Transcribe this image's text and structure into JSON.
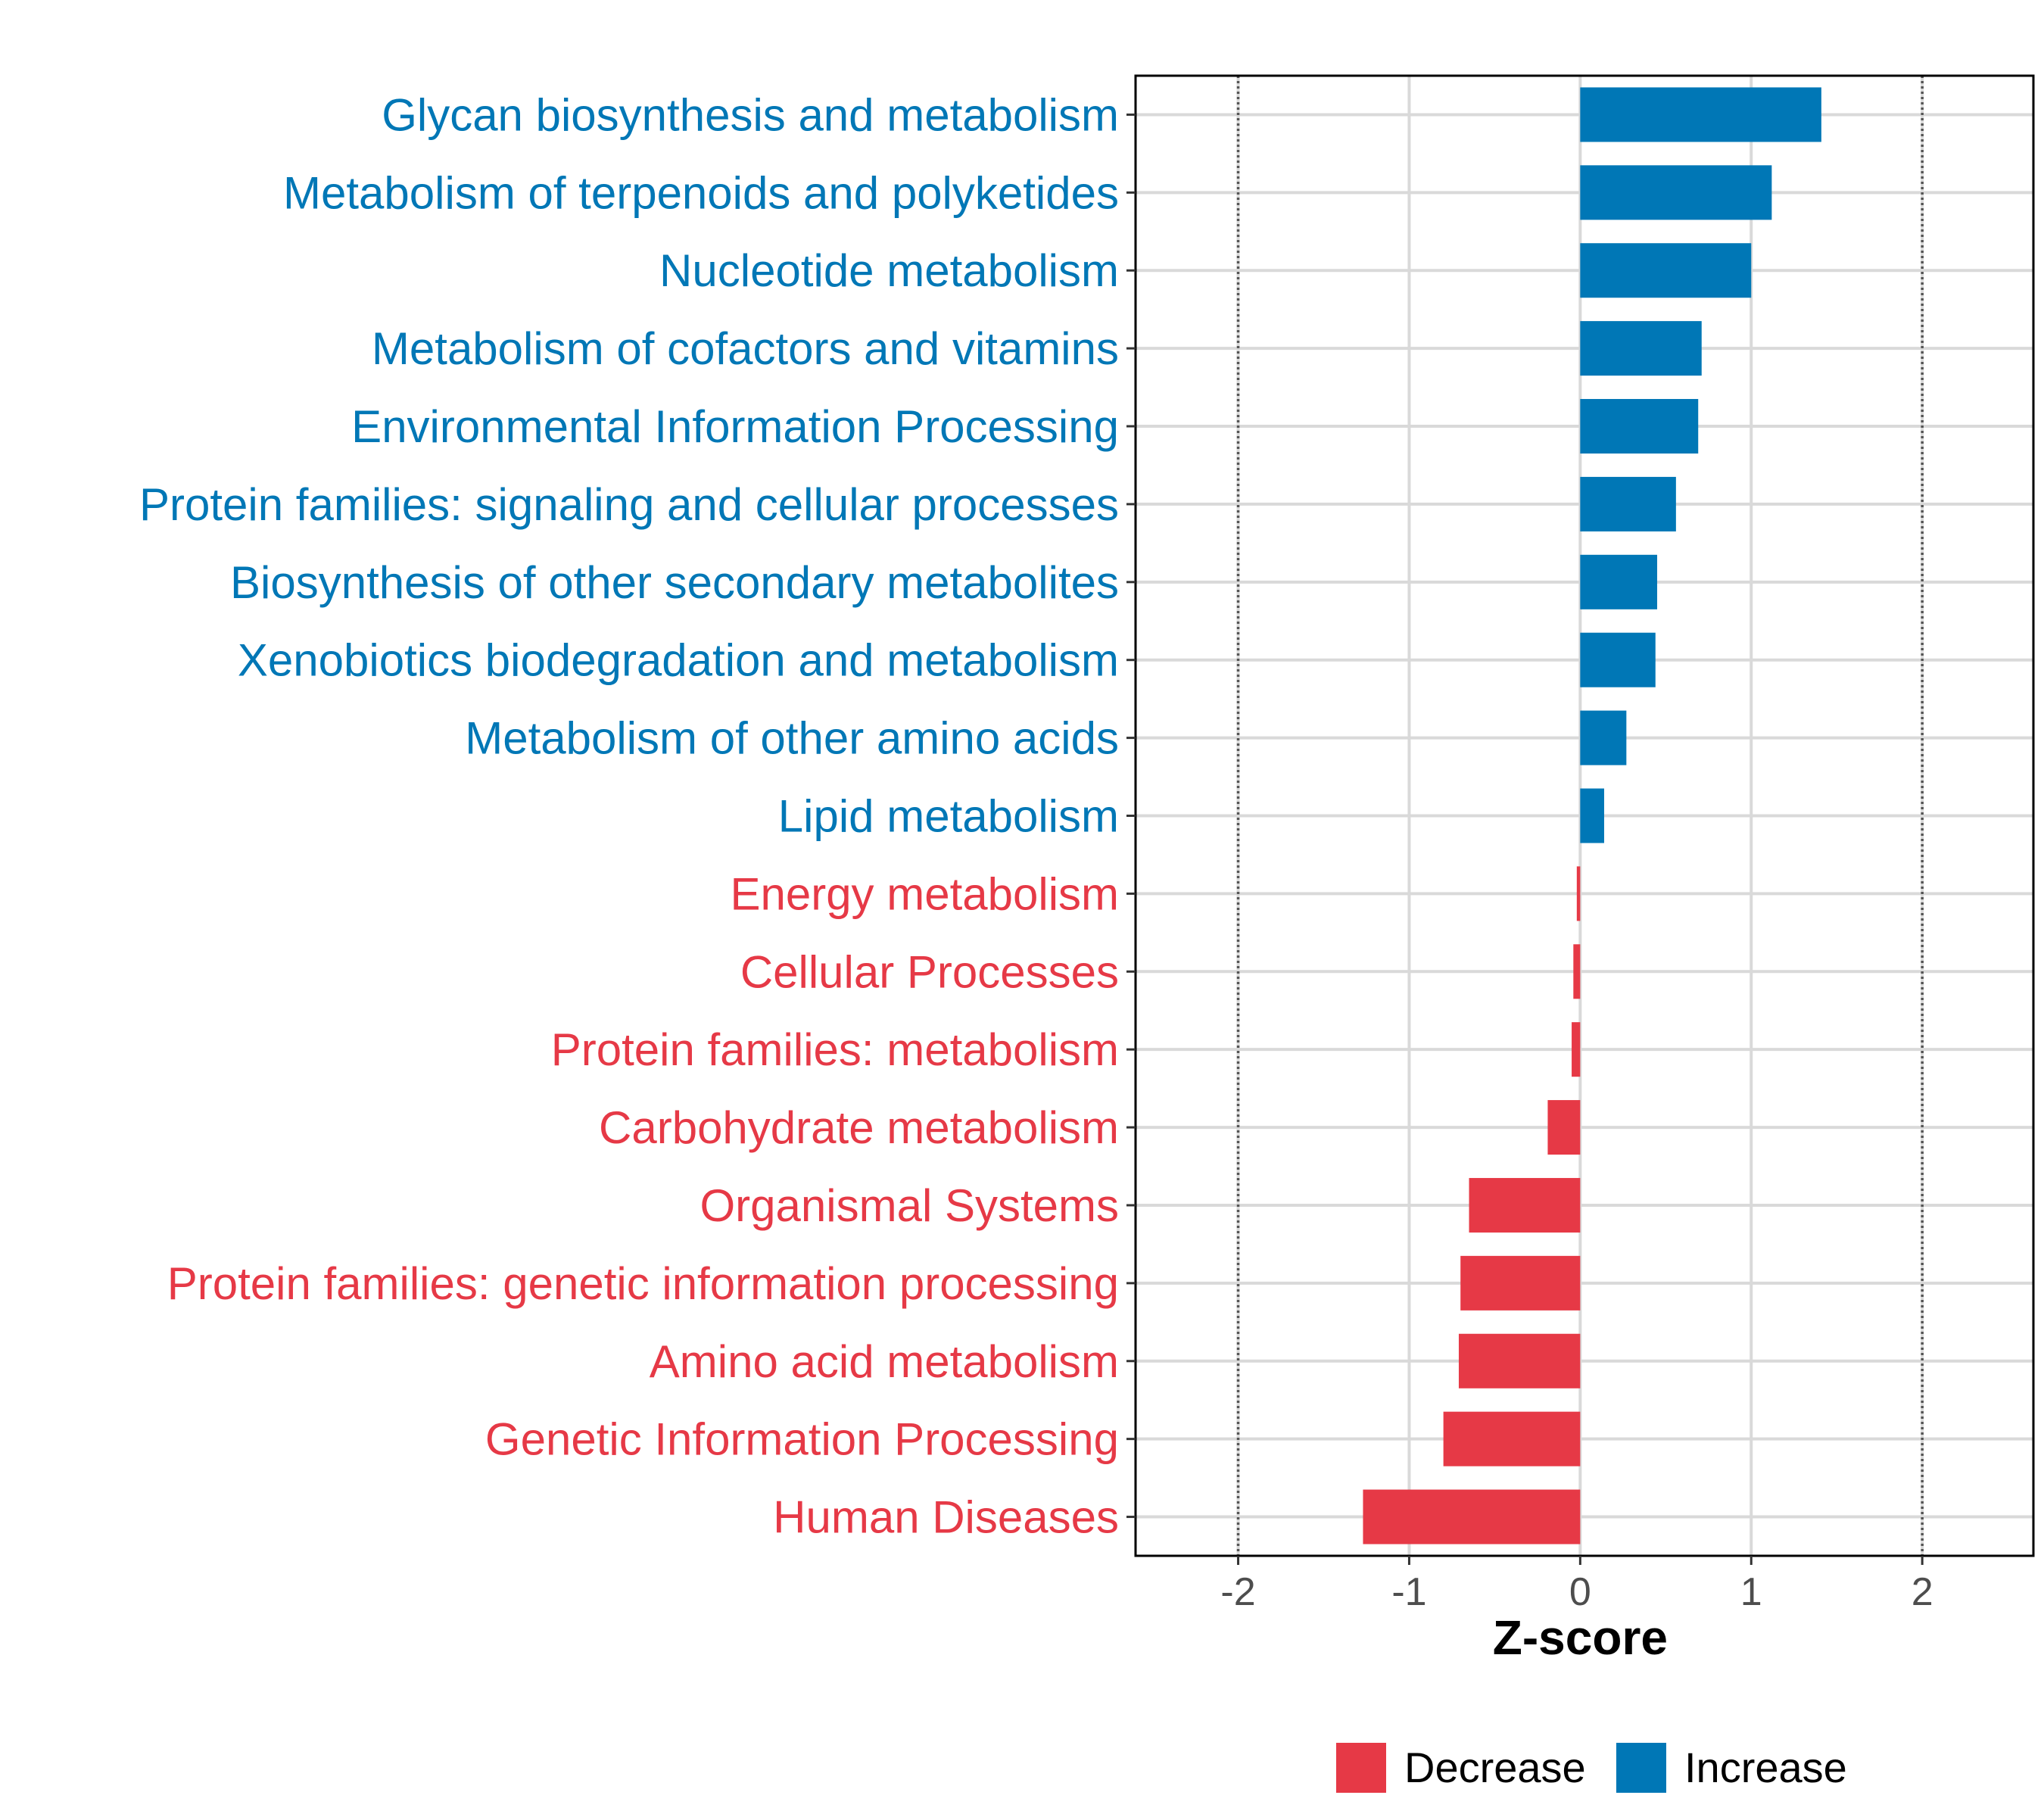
{
  "chart_data": {
    "type": "bar",
    "orientation": "horizontal",
    "xlabel": "Z-score",
    "ylabel": "",
    "xlim": [
      -2.6,
      2.65
    ],
    "xticks": [
      -2,
      -1,
      0,
      1,
      2
    ],
    "xtick_labels": [
      "-2",
      "-1",
      "0",
      "1",
      "2"
    ],
    "reference_lines": [
      -2,
      2
    ],
    "grid": true,
    "categories": [
      "Glycan biosynthesis and metabolism",
      "Metabolism of terpenoids and polyketides",
      "Nucleotide metabolism",
      "Metabolism of cofactors and vitamins",
      "Environmental Information Processing",
      "Protein families: signaling and cellular processes",
      "Biosynthesis of other secondary metabolites",
      "Xenobiotics biodegradation and metabolism",
      "Metabolism of other amino acids",
      "Lipid metabolism",
      "Energy metabolism",
      "Cellular Processes",
      "Protein families: metabolism",
      "Carbohydrate metabolism",
      "Organismal Systems",
      "Protein families: genetic information processing",
      "Amino acid metabolism",
      "Genetic Information Processing",
      "Human Diseases"
    ],
    "values": [
      1.41,
      1.12,
      1.0,
      0.71,
      0.69,
      0.56,
      0.45,
      0.44,
      0.27,
      0.14,
      -0.02,
      -0.04,
      -0.05,
      -0.19,
      -0.65,
      -0.7,
      -0.71,
      -0.8,
      -1.27
    ],
    "groups": [
      "Increase",
      "Increase",
      "Increase",
      "Increase",
      "Increase",
      "Increase",
      "Increase",
      "Increase",
      "Increase",
      "Increase",
      "Decrease",
      "Decrease",
      "Decrease",
      "Decrease",
      "Decrease",
      "Decrease",
      "Decrease",
      "Decrease",
      "Decrease"
    ],
    "legend": {
      "position": "bottom",
      "entries": [
        {
          "name": "Decrease",
          "color": "#E63946"
        },
        {
          "name": "Increase",
          "color": "#0077B6"
        }
      ]
    }
  }
}
